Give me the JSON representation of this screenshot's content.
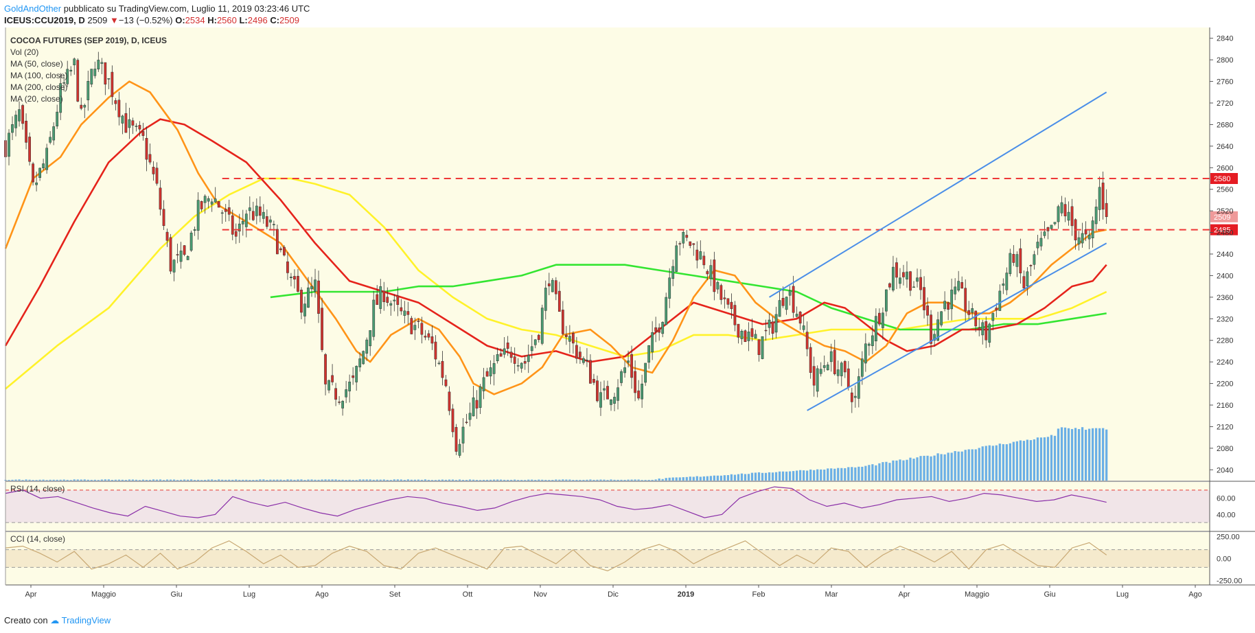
{
  "header": {
    "author": "GoldAndOther",
    "published": "pubblicato su TradingView.com, Luglio 11, 2019 03:23:46 UTC",
    "symbol": "ICEUS:CCU2019, D",
    "price": "2509",
    "change_arrow": "▼",
    "change": "−13 (−0.52%)",
    "o_label": "O:",
    "o_value": "2534",
    "h_label": "H:",
    "h_value": "2560",
    "l_label": "L:",
    "l_value": "2496",
    "c_label": "C:",
    "c_value": "2509"
  },
  "legend": {
    "title": "COCOA FUTURES (SEP 2019), D, ICEUS",
    "lines": [
      "Vol (20)",
      "MA (50, close)",
      "MA (100, close)",
      "MA (200, close)",
      "MA (20, close)"
    ]
  },
  "footer": {
    "created_with": "Creato con",
    "brand": "TradingView"
  },
  "colors": {
    "background": "#fdfce6",
    "up": "#4a9b72",
    "down": "#d0332e",
    "ma20": "#ff9418",
    "ma50": "#e5231b",
    "ma100": "#fff22a",
    "ma200": "#33e531",
    "channel": "#4a8ee8",
    "level": "#ee3737",
    "volume": "#5aa6e6",
    "rsi": "#8a2fa8",
    "cci": "#c8a873"
  },
  "chart_data": [
    {
      "type": "candlestick",
      "title": "COCOA FUTURES (SEP 2019), D, ICEUS",
      "ylim": [
        2020,
        2860
      ],
      "y_ticks": [
        2040,
        2080,
        2120,
        2160,
        2200,
        2240,
        2280,
        2320,
        2360,
        2400,
        2440,
        2480,
        2520,
        2560,
        2600,
        2640,
        2680,
        2720,
        2760,
        2800,
        2840
      ],
      "x_ticks": [
        "Apr",
        "Maggio",
        "Giu",
        "Lug",
        "Ago",
        "Set",
        "Ott",
        "Nov",
        "Dic",
        "2019",
        "Feb",
        "Mar",
        "Apr",
        "Maggio",
        "Giu",
        "Lug",
        "Ago"
      ],
      "x_range_index": [
        0,
        350
      ],
      "last_index": 320,
      "close_path": [
        [
          0,
          2640
        ],
        [
          4,
          2700
        ],
        [
          8,
          2560
        ],
        [
          12,
          2620
        ],
        [
          16,
          2740
        ],
        [
          20,
          2790
        ],
        [
          22,
          2690
        ],
        [
          26,
          2800
        ],
        [
          30,
          2760
        ],
        [
          35,
          2680
        ],
        [
          40,
          2650
        ],
        [
          44,
          2560
        ],
        [
          48,
          2420
        ],
        [
          52,
          2430
        ],
        [
          56,
          2520
        ],
        [
          60,
          2550
        ],
        [
          63,
          2520
        ],
        [
          67,
          2470
        ],
        [
          70,
          2520
        ],
        [
          74,
          2510
        ],
        [
          78,
          2480
        ],
        [
          82,
          2400
        ],
        [
          86,
          2350
        ],
        [
          90,
          2380
        ],
        [
          93,
          2190
        ],
        [
          97,
          2180
        ],
        [
          101,
          2200
        ],
        [
          104,
          2260
        ],
        [
          107,
          2340
        ],
        [
          110,
          2370
        ],
        [
          113,
          2340
        ],
        [
          116,
          2320
        ],
        [
          120,
          2300
        ],
        [
          124,
          2270
        ],
        [
          128,
          2200
        ],
        [
          131,
          2090
        ],
        [
          135,
          2140
        ],
        [
          139,
          2200
        ],
        [
          143,
          2240
        ],
        [
          147,
          2260
        ],
        [
          151,
          2240
        ],
        [
          155,
          2300
        ],
        [
          158,
          2400
        ],
        [
          161,
          2320
        ],
        [
          165,
          2270
        ],
        [
          169,
          2230
        ],
        [
          173,
          2170
        ],
        [
          177,
          2190
        ],
        [
          181,
          2240
        ],
        [
          184,
          2170
        ],
        [
          187,
          2260
        ],
        [
          191,
          2330
        ],
        [
          195,
          2470
        ],
        [
          199,
          2460
        ],
        [
          203,
          2430
        ],
        [
          207,
          2370
        ],
        [
          211,
          2320
        ],
        [
          215,
          2290
        ],
        [
          219,
          2270
        ],
        [
          223,
          2310
        ],
        [
          227,
          2380
        ],
        [
          231,
          2320
        ],
        [
          235,
          2200
        ],
        [
          239,
          2250
        ],
        [
          243,
          2220
        ],
        [
          247,
          2170
        ],
        [
          250,
          2270
        ],
        [
          254,
          2330
        ],
        [
          258,
          2410
        ],
        [
          262,
          2400
        ],
        [
          266,
          2370
        ],
        [
          269,
          2290
        ],
        [
          273,
          2350
        ],
        [
          277,
          2370
        ],
        [
          281,
          2320
        ],
        [
          285,
          2290
        ],
        [
          289,
          2370
        ],
        [
          293,
          2440
        ],
        [
          296,
          2380
        ],
        [
          300,
          2450
        ],
        [
          304,
          2480
        ],
        [
          307,
          2530
        ],
        [
          311,
          2480
        ],
        [
          315,
          2460
        ],
        [
          318,
          2560
        ],
        [
          320,
          2509
        ]
      ],
      "ma20": [
        [
          0,
          2450
        ],
        [
          8,
          2580
        ],
        [
          16,
          2620
        ],
        [
          22,
          2680
        ],
        [
          30,
          2730
        ],
        [
          36,
          2760
        ],
        [
          42,
          2740
        ],
        [
          50,
          2670
        ],
        [
          56,
          2590
        ],
        [
          62,
          2530
        ],
        [
          70,
          2500
        ],
        [
          80,
          2460
        ],
        [
          88,
          2390
        ],
        [
          96,
          2320
        ],
        [
          102,
          2260
        ],
        [
          106,
          2240
        ],
        [
          112,
          2290
        ],
        [
          120,
          2320
        ],
        [
          126,
          2300
        ],
        [
          132,
          2250
        ],
        [
          136,
          2200
        ],
        [
          142,
          2180
        ],
        [
          150,
          2200
        ],
        [
          156,
          2230
        ],
        [
          162,
          2290
        ],
        [
          170,
          2300
        ],
        [
          176,
          2270
        ],
        [
          182,
          2230
        ],
        [
          188,
          2220
        ],
        [
          194,
          2280
        ],
        [
          200,
          2360
        ],
        [
          206,
          2410
        ],
        [
          212,
          2400
        ],
        [
          218,
          2350
        ],
        [
          224,
          2320
        ],
        [
          232,
          2290
        ],
        [
          238,
          2270
        ],
        [
          244,
          2260
        ],
        [
          250,
          2240
        ],
        [
          256,
          2270
        ],
        [
          262,
          2330
        ],
        [
          268,
          2350
        ],
        [
          274,
          2350
        ],
        [
          280,
          2330
        ],
        [
          286,
          2330
        ],
        [
          292,
          2350
        ],
        [
          298,
          2380
        ],
        [
          304,
          2420
        ],
        [
          310,
          2450
        ],
        [
          316,
          2480
        ],
        [
          320,
          2485
        ]
      ],
      "ma50": [
        [
          0,
          2270
        ],
        [
          10,
          2380
        ],
        [
          20,
          2500
        ],
        [
          30,
          2610
        ],
        [
          40,
          2670
        ],
        [
          45,
          2690
        ],
        [
          52,
          2680
        ],
        [
          60,
          2650
        ],
        [
          70,
          2610
        ],
        [
          80,
          2540
        ],
        [
          90,
          2460
        ],
        [
          100,
          2390
        ],
        [
          110,
          2370
        ],
        [
          120,
          2350
        ],
        [
          130,
          2310
        ],
        [
          140,
          2270
        ],
        [
          150,
          2250
        ],
        [
          160,
          2260
        ],
        [
          170,
          2240
        ],
        [
          180,
          2250
        ],
        [
          190,
          2300
        ],
        [
          200,
          2350
        ],
        [
          210,
          2330
        ],
        [
          220,
          2310
        ],
        [
          230,
          2320
        ],
        [
          238,
          2350
        ],
        [
          244,
          2340
        ],
        [
          250,
          2310
        ],
        [
          256,
          2280
        ],
        [
          262,
          2260
        ],
        [
          270,
          2270
        ],
        [
          278,
          2300
        ],
        [
          286,
          2300
        ],
        [
          294,
          2310
        ],
        [
          302,
          2340
        ],
        [
          310,
          2380
        ],
        [
          316,
          2390
        ],
        [
          320,
          2420
        ]
      ],
      "ma100": [
        [
          0,
          2190
        ],
        [
          15,
          2270
        ],
        [
          30,
          2340
        ],
        [
          45,
          2450
        ],
        [
          55,
          2510
        ],
        [
          65,
          2550
        ],
        [
          75,
          2580
        ],
        [
          83,
          2580
        ],
        [
          90,
          2570
        ],
        [
          100,
          2550
        ],
        [
          110,
          2490
        ],
        [
          120,
          2410
        ],
        [
          130,
          2360
        ],
        [
          140,
          2320
        ],
        [
          150,
          2300
        ],
        [
          160,
          2290
        ],
        [
          170,
          2270
        ],
        [
          180,
          2250
        ],
        [
          190,
          2260
        ],
        [
          200,
          2290
        ],
        [
          210,
          2290
        ],
        [
          220,
          2280
        ],
        [
          230,
          2290
        ],
        [
          240,
          2300
        ],
        [
          250,
          2300
        ],
        [
          260,
          2300
        ],
        [
          270,
          2310
        ],
        [
          280,
          2320
        ],
        [
          290,
          2320
        ],
        [
          300,
          2320
        ],
        [
          310,
          2340
        ],
        [
          320,
          2370
        ]
      ],
      "ma200": [
        [
          77,
          2360
        ],
        [
          90,
          2370
        ],
        [
          100,
          2370
        ],
        [
          110,
          2370
        ],
        [
          120,
          2380
        ],
        [
          130,
          2380
        ],
        [
          140,
          2390
        ],
        [
          150,
          2400
        ],
        [
          160,
          2420
        ],
        [
          170,
          2420
        ],
        [
          180,
          2420
        ],
        [
          190,
          2410
        ],
        [
          200,
          2400
        ],
        [
          210,
          2390
        ],
        [
          220,
          2380
        ],
        [
          230,
          2370
        ],
        [
          240,
          2340
        ],
        [
          250,
          2320
        ],
        [
          260,
          2300
        ],
        [
          270,
          2300
        ],
        [
          280,
          2300
        ],
        [
          290,
          2310
        ],
        [
          300,
          2310
        ],
        [
          310,
          2320
        ],
        [
          320,
          2330
        ]
      ],
      "levels": [
        {
          "value": 2580,
          "label": "2580"
        },
        {
          "value": 2485,
          "label": "2485"
        }
      ],
      "current_price_label": "2509",
      "channel": {
        "lower": [
          [
            233,
            2150
          ],
          [
            320,
            2460
          ]
        ],
        "upper": [
          [
            222,
            2360
          ],
          [
            320,
            2740
          ]
        ]
      }
    },
    {
      "type": "bar",
      "title": "Vol (20)",
      "note": "volume rises strongly from Feb 2019 into July"
    },
    {
      "type": "line",
      "title": "RSI (14, close)",
      "ylim": [
        20,
        80
      ],
      "y_ticks": [
        40.0,
        60.0
      ],
      "levels": [
        70,
        30
      ],
      "values_approx": [
        66,
        70,
        60,
        62,
        55,
        48,
        42,
        38,
        50,
        44,
        38,
        36,
        40,
        62,
        55,
        50,
        55,
        48,
        42,
        38,
        46,
        52,
        58,
        62,
        60,
        54,
        50,
        45,
        48,
        56,
        62,
        66,
        64,
        62,
        58,
        50,
        46,
        48,
        52,
        44,
        36,
        40,
        60,
        68,
        74,
        72,
        58,
        50,
        54,
        48,
        52,
        58,
        60,
        62,
        56,
        60,
        66,
        64,
        60,
        56,
        58,
        64,
        60,
        55
      ]
    },
    {
      "type": "line",
      "title": "CCI (14, close)",
      "ylim": [
        -300,
        300
      ],
      "y_ticks": [
        250.0,
        0.0,
        -250.0
      ],
      "levels": [
        100,
        -100
      ],
      "values_approx": [
        120,
        140,
        60,
        -40,
        80,
        -120,
        -60,
        40,
        -100,
        60,
        -120,
        -40,
        120,
        200,
        80,
        -60,
        40,
        -100,
        -80,
        60,
        140,
        80,
        -80,
        -120,
        60,
        120,
        40,
        -40,
        -120,
        120,
        140,
        40,
        -60,
        100,
        -80,
        -140,
        -40,
        100,
        160,
        80,
        -60,
        40,
        120,
        200,
        60,
        -80,
        40,
        -60,
        120,
        80,
        -100,
        40,
        140,
        60,
        -40,
        80,
        -120,
        100,
        160,
        40,
        -80,
        -100,
        120,
        180,
        40
      ]
    }
  ]
}
